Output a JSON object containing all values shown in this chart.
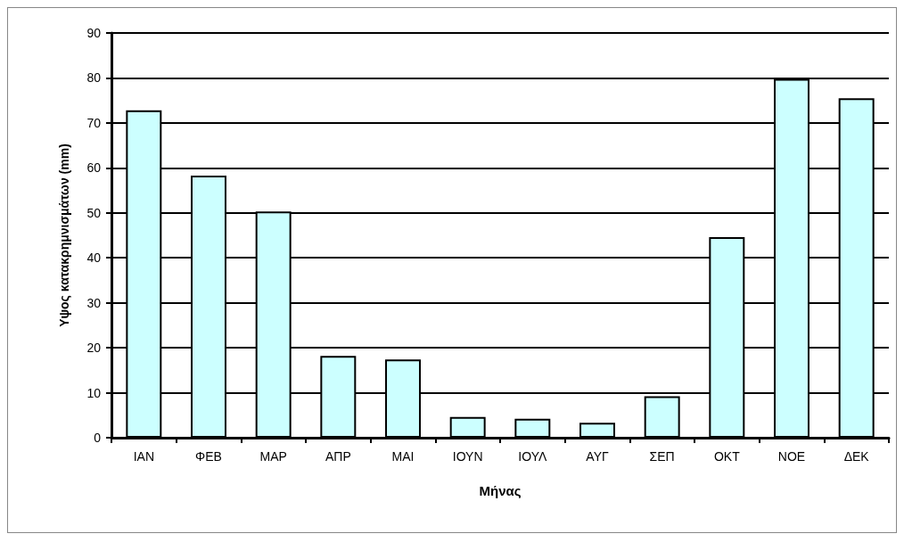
{
  "chart_data": {
    "type": "bar",
    "xlabel": "Μήνας",
    "ylabel": "Υψος κατακρημνισμάτων (mm)",
    "categories": [
      "ΙΑΝ",
      "ΦΕΒ",
      "ΜΑΡ",
      "ΑΠΡ",
      "ΜΑΙ",
      "ΙΟΥΝ",
      "ΙΟΥΛ",
      "ΑΥΓ",
      "ΣΕΠ",
      "ΟΚΤ",
      "ΝΟΕ",
      "ΔΕΚ"
    ],
    "values": [
      72.8,
      58.3,
      50.3,
      18.2,
      17.4,
      4.6,
      4.2,
      3.3,
      9.2,
      44.6,
      79.8,
      75.5
    ],
    "color": "#ccffff",
    "ylim": [
      0,
      90
    ],
    "yticks": [
      0,
      10,
      20,
      30,
      40,
      50,
      60,
      70,
      80,
      90
    ],
    "grid": "y"
  }
}
